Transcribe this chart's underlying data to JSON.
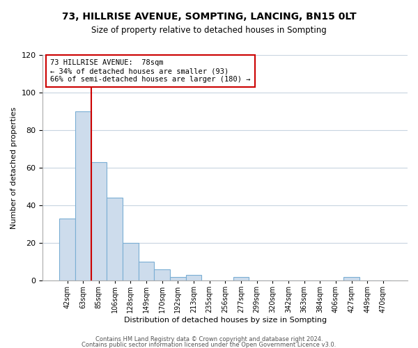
{
  "title": "73, HILLRISE AVENUE, SOMPTING, LANCING, BN15 0LT",
  "subtitle": "Size of property relative to detached houses in Sompting",
  "xlabel": "Distribution of detached houses by size in Sompting",
  "ylabel": "Number of detached properties",
  "bin_labels": [
    "42sqm",
    "63sqm",
    "85sqm",
    "106sqm",
    "128sqm",
    "149sqm",
    "170sqm",
    "192sqm",
    "213sqm",
    "235sqm",
    "256sqm",
    "277sqm",
    "299sqm",
    "320sqm",
    "342sqm",
    "363sqm",
    "384sqm",
    "406sqm",
    "427sqm",
    "449sqm",
    "470sqm"
  ],
  "bar_values": [
    33,
    90,
    63,
    44,
    20,
    10,
    6,
    2,
    3,
    0,
    0,
    2,
    0,
    0,
    0,
    0,
    0,
    0,
    2,
    0,
    0
  ],
  "bar_color": "#cddcec",
  "bar_edge_color": "#7aaed4",
  "vline_color": "#cc0000",
  "annotation_title": "73 HILLRISE AVENUE:  78sqm",
  "annotation_line1": "← 34% of detached houses are smaller (93)",
  "annotation_line2": "66% of semi-detached houses are larger (180) →",
  "annotation_box_color": "#ffffff",
  "annotation_box_edge": "#cc0000",
  "ylim": [
    0,
    120
  ],
  "yticks": [
    0,
    20,
    40,
    60,
    80,
    100,
    120
  ],
  "footer1": "Contains HM Land Registry data © Crown copyright and database right 2024.",
  "footer2": "Contains public sector information licensed under the Open Government Licence v3.0.",
  "background_color": "#ffffff",
  "grid_color": "#c8d4e0",
  "title_fontsize": 10,
  "subtitle_fontsize": 8.5,
  "ylabel_fontsize": 8,
  "xlabel_fontsize": 8,
  "tick_fontsize": 7,
  "footer_fontsize": 6,
  "annot_fontsize": 7.5
}
